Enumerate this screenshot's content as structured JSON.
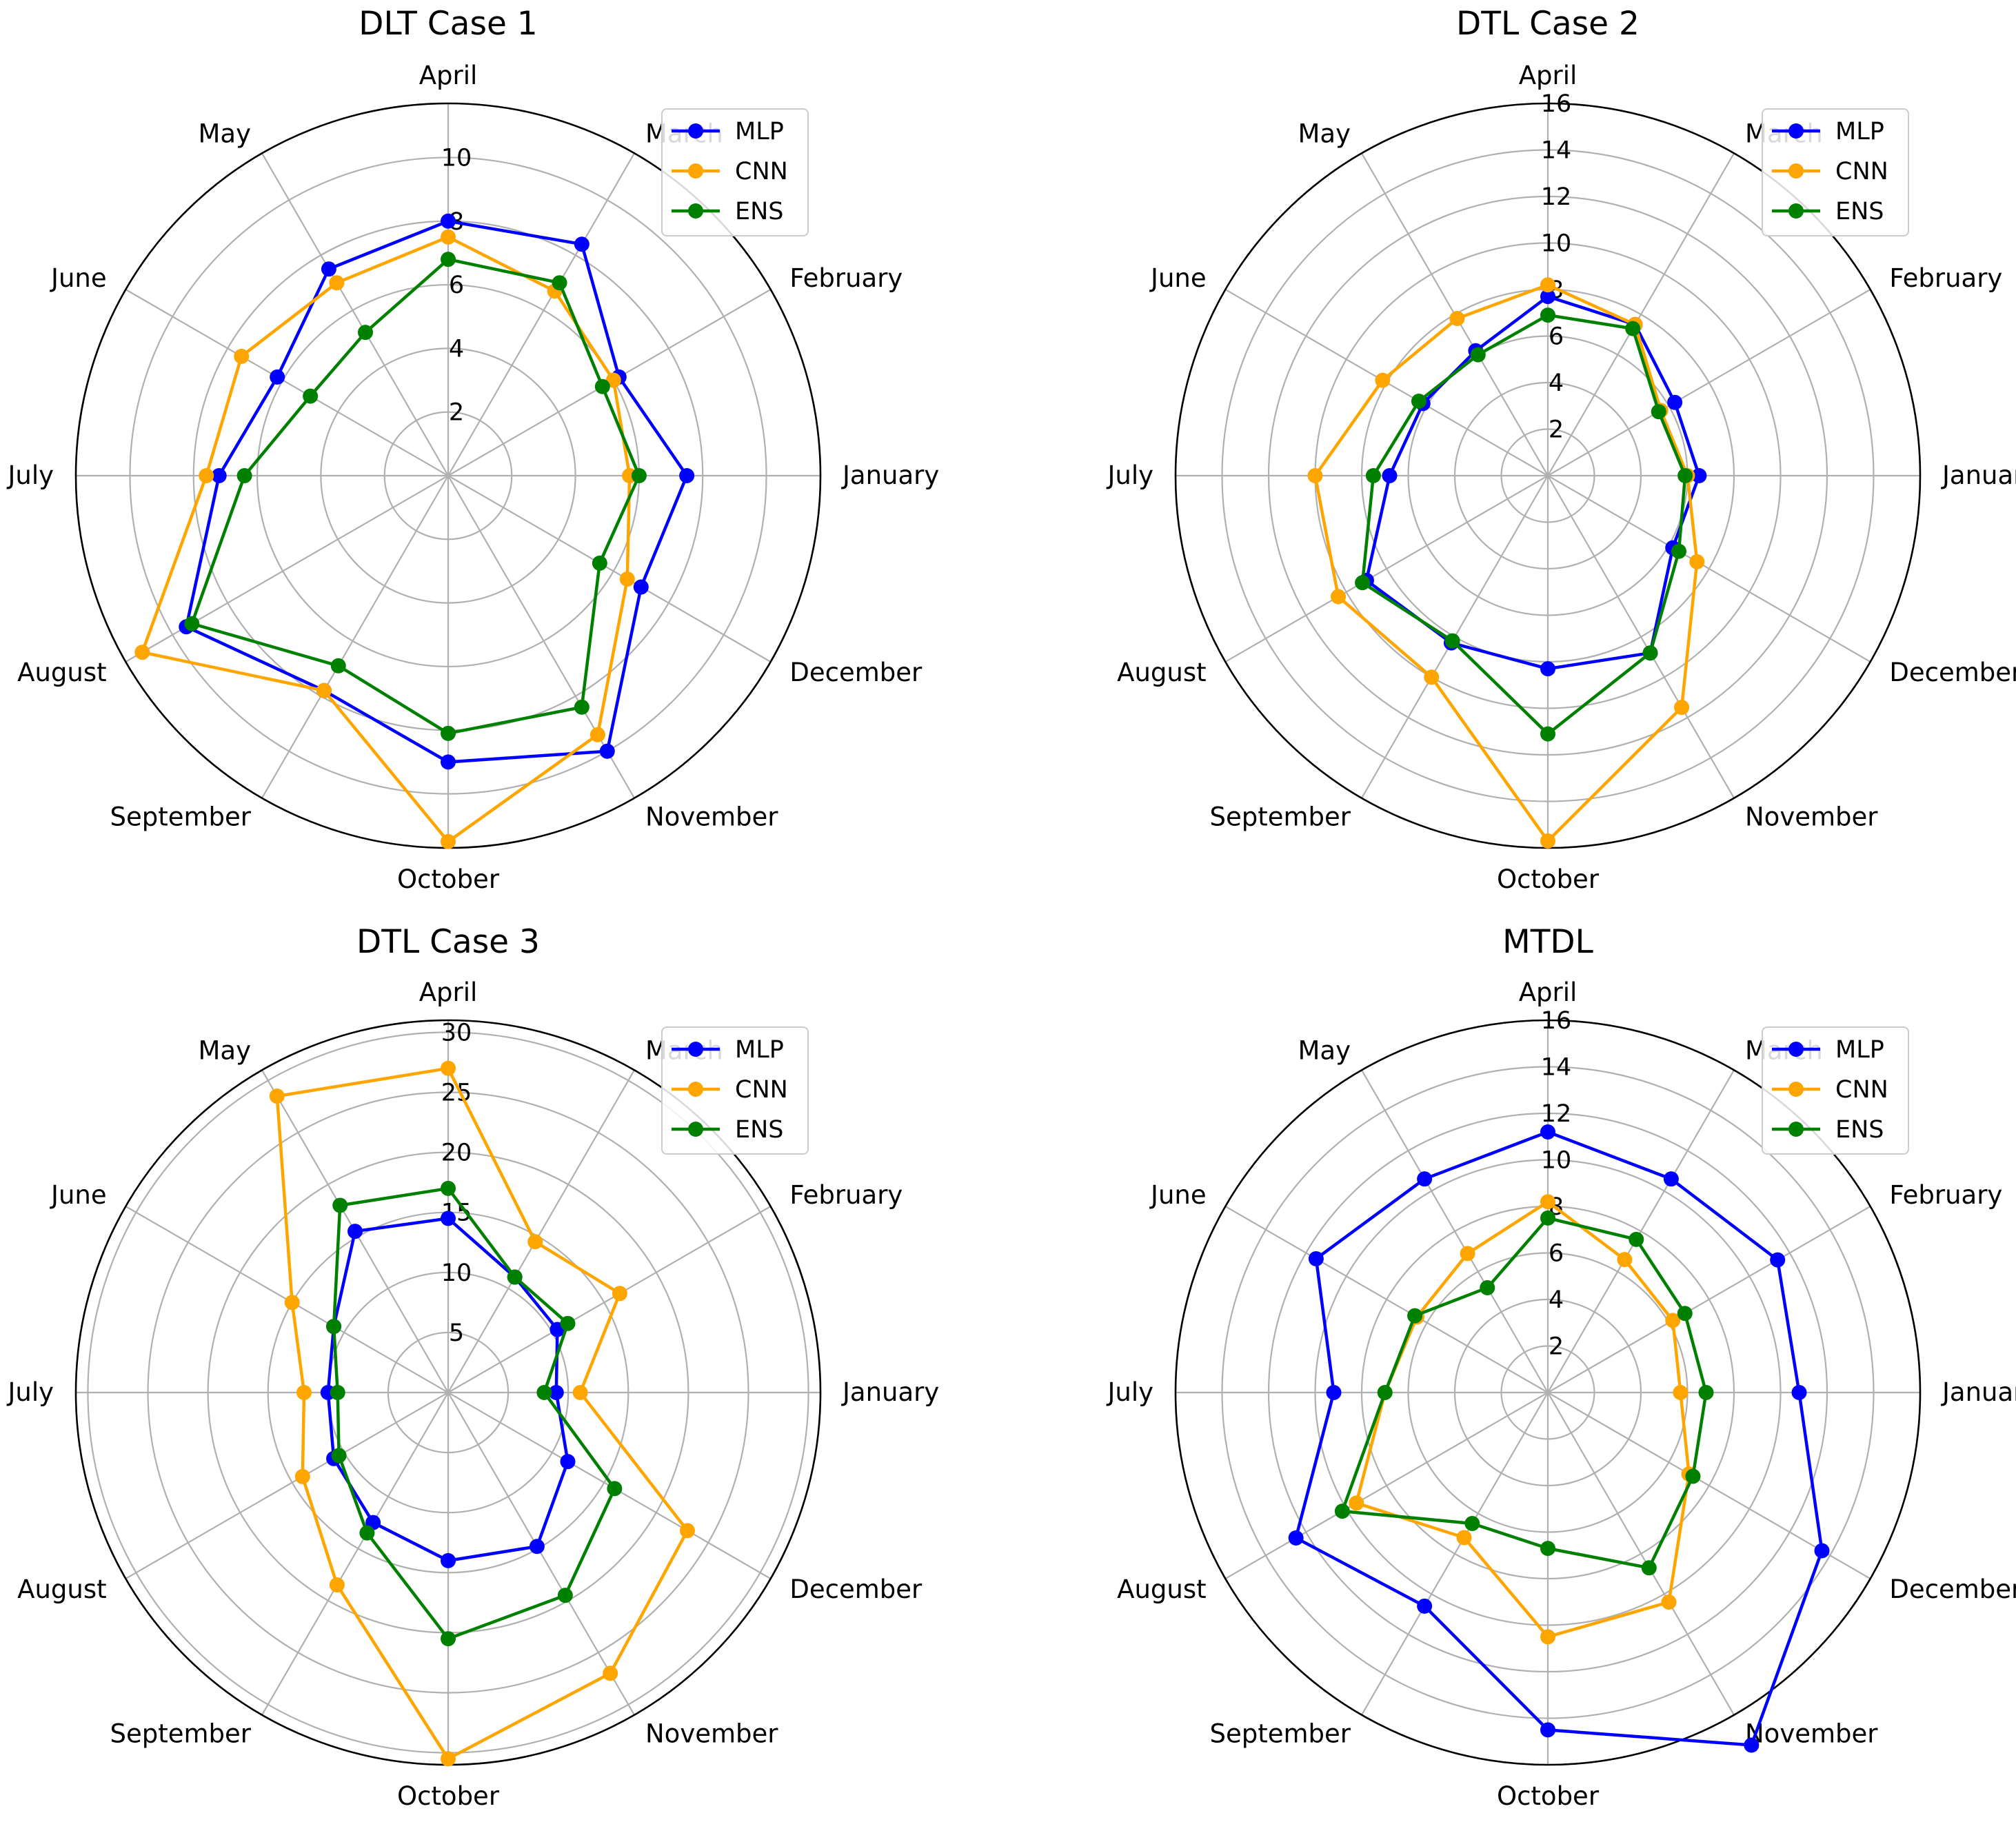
{
  "chart_data": [
    {
      "type": "radar",
      "title": "DLT Case 1",
      "categories": [
        "January",
        "February",
        "March",
        "April",
        "May",
        "June",
        "July",
        "August",
        "September",
        "October",
        "November",
        "December"
      ],
      "rmax": 11.7,
      "rticks": [
        2,
        4,
        6,
        8,
        10
      ],
      "legend": "top-right",
      "series": [
        {
          "name": "MLP",
          "color": "#0000ff",
          "values": [
            7.5,
            6.2,
            8.4,
            8.0,
            7.5,
            6.2,
            7.2,
            9.5,
            7.8,
            9.0,
            10.0,
            7.0
          ]
        },
        {
          "name": "CNN",
          "color": "#ffa500",
          "values": [
            5.7,
            6.0,
            6.7,
            7.5,
            7.0,
            7.5,
            7.6,
            11.1,
            7.8,
            11.5,
            9.4,
            6.5
          ]
        },
        {
          "name": "ENS",
          "color": "#008000",
          "values": [
            6.0,
            5.6,
            7.0,
            6.8,
            5.2,
            5.0,
            6.4,
            9.3,
            6.9,
            8.1,
            8.4,
            5.5
          ]
        }
      ]
    },
    {
      "type": "radar",
      "title": "DTL Case 2",
      "categories": [
        "January",
        "February",
        "March",
        "April",
        "May",
        "June",
        "July",
        "August",
        "September",
        "October",
        "November",
        "December"
      ],
      "rmax": 16.0,
      "rticks": [
        2,
        4,
        6,
        8,
        10,
        12,
        14,
        16
      ],
      "legend": "top-right",
      "series": [
        {
          "name": "MLP",
          "color": "#0000ff",
          "values": [
            6.5,
            6.3,
            7.5,
            7.7,
            6.2,
            6.2,
            6.8,
            9.0,
            8.3,
            8.3,
            8.8,
            6.2
          ]
        },
        {
          "name": "CNN",
          "color": "#ffa500",
          "values": [
            6.0,
            5.6,
            7.5,
            8.2,
            7.8,
            8.2,
            10.0,
            10.4,
            10.0,
            15.7,
            11.5,
            7.4
          ]
        },
        {
          "name": "ENS",
          "color": "#008000",
          "values": [
            5.9,
            5.5,
            7.3,
            6.9,
            6.0,
            6.4,
            7.5,
            9.2,
            8.2,
            11.1,
            8.8,
            6.5
          ]
        }
      ]
    },
    {
      "type": "radar",
      "title": "DTL Case 3",
      "categories": [
        "January",
        "February",
        "March",
        "April",
        "May",
        "June",
        "July",
        "August",
        "September",
        "October",
        "November",
        "December"
      ],
      "rmax": 31.0,
      "rticks": [
        5,
        10,
        15,
        20,
        25,
        30
      ],
      "legend": "top-right",
      "series": [
        {
          "name": "MLP",
          "color": "#0000ff",
          "values": [
            9.0,
            10.5,
            11.1,
            14.5,
            15.5,
            11.0,
            10.0,
            11.0,
            12.5,
            14.0,
            14.8,
            11.5
          ]
        },
        {
          "name": "CNN",
          "color": "#ffa500",
          "values": [
            11.0,
            16.5,
            14.5,
            27.0,
            28.5,
            15.0,
            12.0,
            14.0,
            18.5,
            30.5,
            27.0,
            23.0
          ]
        },
        {
          "name": "ENS",
          "color": "#008000",
          "values": [
            8.0,
            11.5,
            11.1,
            17.0,
            18.0,
            11.0,
            9.2,
            10.5,
            13.5,
            20.5,
            19.5,
            16.0
          ]
        }
      ]
    },
    {
      "type": "radar",
      "title": "MTDL",
      "categories": [
        "January",
        "February",
        "March",
        "April",
        "May",
        "June",
        "July",
        "August",
        "September",
        "October",
        "November",
        "December"
      ],
      "rmax": 16.0,
      "rticks": [
        2,
        4,
        6,
        8,
        10,
        12,
        14,
        16
      ],
      "legend": "top-right",
      "series": [
        {
          "name": "MLP",
          "color": "#0000ff",
          "values": [
            10.8,
            11.4,
            10.6,
            11.2,
            10.6,
            11.5,
            9.2,
            12.5,
            10.6,
            14.5,
            17.5,
            13.6
          ]
        },
        {
          "name": "CNN",
          "color": "#ffa500",
          "values": [
            5.7,
            6.2,
            6.6,
            8.2,
            6.9,
            6.5,
            7.0,
            9.5,
            7.2,
            10.5,
            10.4,
            7.0
          ]
        },
        {
          "name": "ENS",
          "color": "#008000",
          "values": [
            6.8,
            6.8,
            7.6,
            7.5,
            5.2,
            6.6,
            7.0,
            10.2,
            6.5,
            6.7,
            8.7,
            7.2
          ]
        }
      ]
    }
  ]
}
